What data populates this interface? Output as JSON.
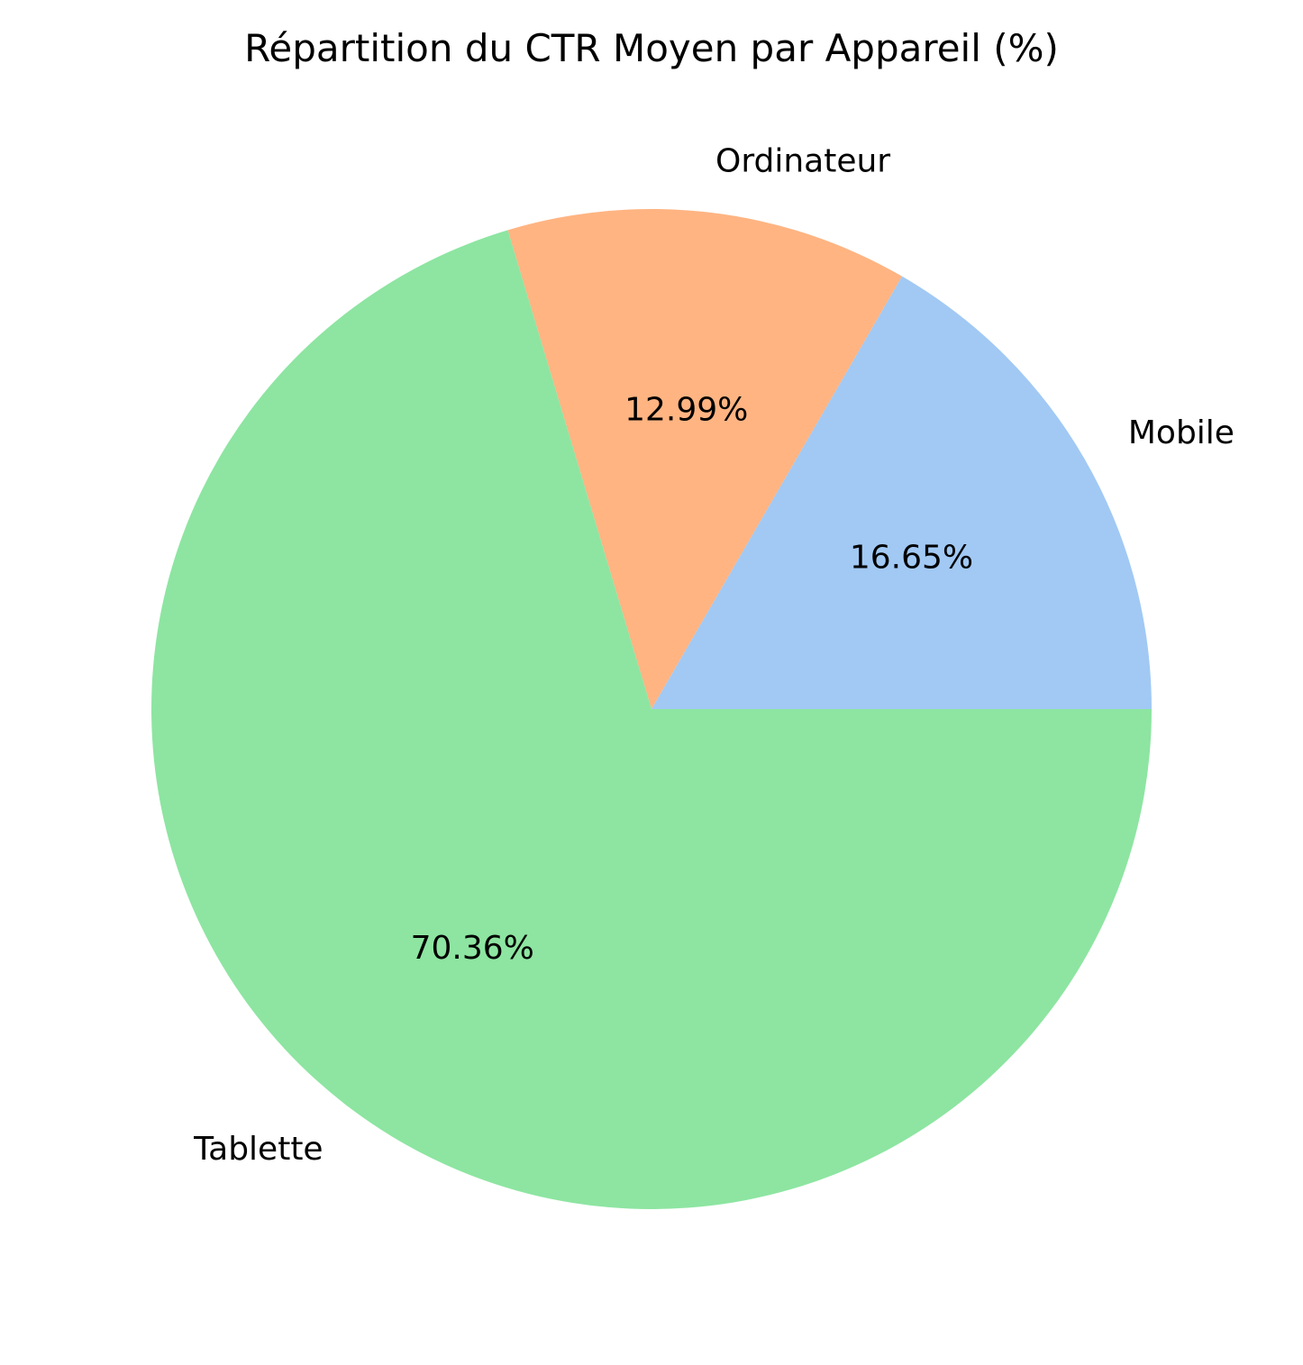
{
  "chart_data": {
    "type": "pie",
    "title": "Répartition du CTR Moyen par Appareil (%)",
    "start_angle_deg": 0,
    "direction": "counterclockwise",
    "slices": [
      {
        "label": "Mobile",
        "value": 16.65,
        "pct_label": "16.65%",
        "color": "#a1c9f4"
      },
      {
        "label": "Ordinateur",
        "value": 12.99,
        "pct_label": "12.99%",
        "color": "#ffb482"
      },
      {
        "label": "Tablette",
        "value": 70.36,
        "pct_label": "70.36%",
        "color": "#8de5a1"
      }
    ]
  }
}
